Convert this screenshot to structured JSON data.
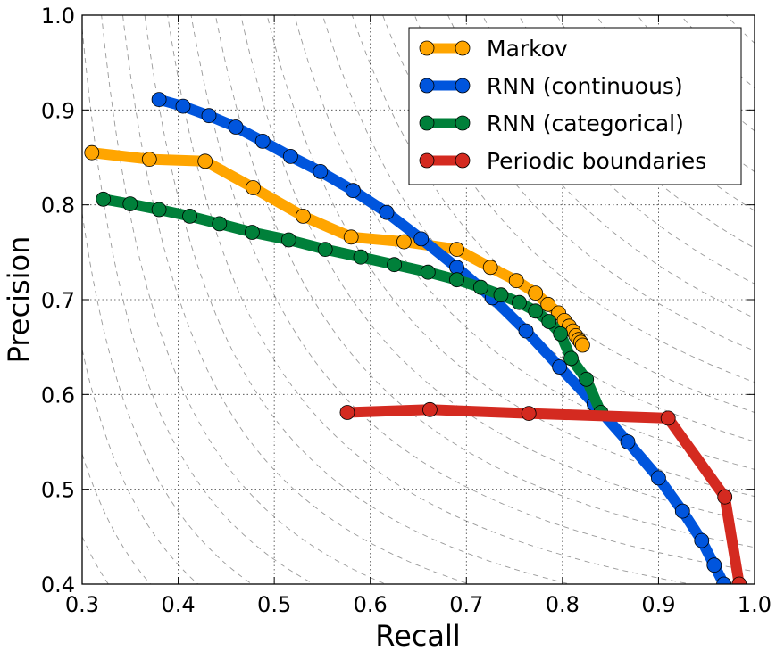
{
  "chart_data": {
    "type": "line",
    "xlabel": "Recall",
    "ylabel": "Precision",
    "xlim": [
      0.3,
      1.0
    ],
    "ylim": [
      0.4,
      1.0
    ],
    "x_ticks": [
      0.3,
      0.4,
      0.5,
      0.6,
      0.7,
      0.8,
      0.9,
      1.0
    ],
    "y_ticks": [
      0.4,
      0.5,
      0.6,
      0.7,
      0.8,
      0.9,
      1.0
    ],
    "x_tick_labels": [
      "0.3",
      "0.4",
      "0.5",
      "0.6",
      "0.7",
      "0.8",
      "0.9",
      "1.0"
    ],
    "y_tick_labels": [
      "0.4",
      "0.5",
      "0.6",
      "0.7",
      "0.8",
      "0.9",
      "1.0"
    ],
    "grid": true,
    "background_contours": "F-measure iso-lines (dashed gray)",
    "legend_position": "top-right",
    "series": [
      {
        "name": "Markov",
        "color": "#ffa500",
        "points": [
          [
            0.31,
            0.855
          ],
          [
            0.37,
            0.848
          ],
          [
            0.428,
            0.846
          ],
          [
            0.478,
            0.818
          ],
          [
            0.53,
            0.788
          ],
          [
            0.58,
            0.766
          ],
          [
            0.635,
            0.761
          ],
          [
            0.69,
            0.753
          ],
          [
            0.725,
            0.734
          ],
          [
            0.752,
            0.72
          ],
          [
            0.772,
            0.707
          ],
          [
            0.785,
            0.695
          ],
          [
            0.796,
            0.686
          ],
          [
            0.802,
            0.678
          ],
          [
            0.807,
            0.672
          ],
          [
            0.811,
            0.667
          ],
          [
            0.814,
            0.662
          ],
          [
            0.817,
            0.658
          ],
          [
            0.819,
            0.655
          ],
          [
            0.821,
            0.652
          ]
        ]
      },
      {
        "name": "RNN (continuous)",
        "color": "#0055dd",
        "points": [
          [
            0.38,
            0.911
          ],
          [
            0.405,
            0.904
          ],
          [
            0.432,
            0.894
          ],
          [
            0.46,
            0.882
          ],
          [
            0.488,
            0.867
          ],
          [
            0.517,
            0.851
          ],
          [
            0.548,
            0.835
          ],
          [
            0.582,
            0.815
          ],
          [
            0.617,
            0.792
          ],
          [
            0.653,
            0.764
          ],
          [
            0.69,
            0.734
          ],
          [
            0.727,
            0.702
          ],
          [
            0.762,
            0.667
          ],
          [
            0.797,
            0.629
          ],
          [
            0.833,
            0.59
          ],
          [
            0.868,
            0.55
          ],
          [
            0.9,
            0.512
          ],
          [
            0.925,
            0.477
          ],
          [
            0.945,
            0.446
          ],
          [
            0.958,
            0.42
          ],
          [
            0.968,
            0.4
          ]
        ]
      },
      {
        "name": "RNN (categorical)",
        "color": "#00803a",
        "points": [
          [
            0.322,
            0.806
          ],
          [
            0.35,
            0.801
          ],
          [
            0.38,
            0.795
          ],
          [
            0.412,
            0.788
          ],
          [
            0.443,
            0.78
          ],
          [
            0.477,
            0.771
          ],
          [
            0.515,
            0.763
          ],
          [
            0.553,
            0.753
          ],
          [
            0.59,
            0.745
          ],
          [
            0.625,
            0.737
          ],
          [
            0.66,
            0.729
          ],
          [
            0.69,
            0.721
          ],
          [
            0.715,
            0.713
          ],
          [
            0.736,
            0.705
          ],
          [
            0.755,
            0.697
          ],
          [
            0.772,
            0.688
          ],
          [
            0.786,
            0.677
          ],
          [
            0.798,
            0.664
          ],
          [
            0.809,
            0.638
          ],
          [
            0.825,
            0.616
          ],
          [
            0.84,
            0.581
          ]
        ]
      },
      {
        "name": "Periodic boundaries",
        "color": "#d42a20",
        "points": [
          [
            0.576,
            0.581
          ],
          [
            0.662,
            0.584
          ],
          [
            0.765,
            0.58
          ],
          [
            0.91,
            0.575
          ],
          [
            0.969,
            0.492
          ],
          [
            0.984,
            0.4
          ]
        ]
      }
    ]
  }
}
